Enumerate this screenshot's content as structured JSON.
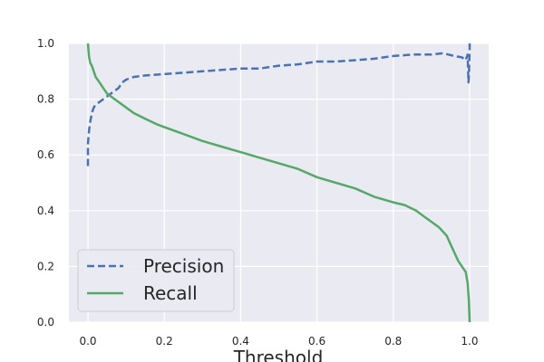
{
  "chart_data": {
    "type": "line",
    "title": "",
    "xlabel": "Threshold",
    "ylabel": "",
    "xlim": [
      -0.05,
      1.05
    ],
    "ylim": [
      0.0,
      1.0
    ],
    "x_ticks": [
      "0.0",
      "0.2",
      "0.4",
      "0.6",
      "0.8",
      "1.0"
    ],
    "y_ticks": [
      "0.0",
      "0.2",
      "0.4",
      "0.6",
      "0.8",
      "1.0"
    ],
    "grid": true,
    "legend_position": "lower-left",
    "series": [
      {
        "name": "Precision",
        "color": "#4c72b0",
        "linestyle": "dashed",
        "x": [
          0.0,
          0.0,
          0.003,
          0.006,
          0.01,
          0.015,
          0.02,
          0.03,
          0.04,
          0.05,
          0.06,
          0.07,
          0.08,
          0.09,
          0.1,
          0.12,
          0.15,
          0.2,
          0.25,
          0.3,
          0.35,
          0.4,
          0.45,
          0.5,
          0.55,
          0.6,
          0.65,
          0.7,
          0.75,
          0.8,
          0.85,
          0.9,
          0.93,
          0.96,
          0.98,
          0.99,
          0.995,
          0.997,
          0.998,
          1.0,
          1.0
        ],
        "y": [
          0.56,
          0.64,
          0.69,
          0.72,
          0.75,
          0.77,
          0.78,
          0.79,
          0.8,
          0.81,
          0.82,
          0.83,
          0.84,
          0.86,
          0.87,
          0.88,
          0.885,
          0.89,
          0.895,
          0.9,
          0.905,
          0.91,
          0.91,
          0.92,
          0.925,
          0.935,
          0.935,
          0.94,
          0.945,
          0.955,
          0.96,
          0.96,
          0.965,
          0.955,
          0.95,
          0.94,
          0.96,
          0.86,
          0.88,
          0.98,
          1.0
        ]
      },
      {
        "name": "Recall",
        "color": "#55a868",
        "linestyle": "solid",
        "x": [
          0.0,
          0.001,
          0.003,
          0.006,
          0.01,
          0.015,
          0.02,
          0.03,
          0.04,
          0.05,
          0.07,
          0.09,
          0.1,
          0.12,
          0.15,
          0.18,
          0.2,
          0.25,
          0.3,
          0.35,
          0.4,
          0.45,
          0.5,
          0.55,
          0.6,
          0.65,
          0.7,
          0.75,
          0.8,
          0.83,
          0.86,
          0.88,
          0.9,
          0.92,
          0.94,
          0.95,
          0.96,
          0.97,
          0.98,
          0.99,
          0.995,
          0.998,
          1.0
        ],
        "y": [
          1.0,
          0.98,
          0.95,
          0.93,
          0.92,
          0.9,
          0.88,
          0.86,
          0.84,
          0.82,
          0.8,
          0.78,
          0.77,
          0.75,
          0.73,
          0.71,
          0.7,
          0.675,
          0.65,
          0.63,
          0.61,
          0.59,
          0.57,
          0.55,
          0.52,
          0.5,
          0.48,
          0.45,
          0.43,
          0.42,
          0.4,
          0.38,
          0.36,
          0.34,
          0.31,
          0.28,
          0.25,
          0.22,
          0.2,
          0.18,
          0.14,
          0.08,
          0.0
        ]
      }
    ]
  }
}
